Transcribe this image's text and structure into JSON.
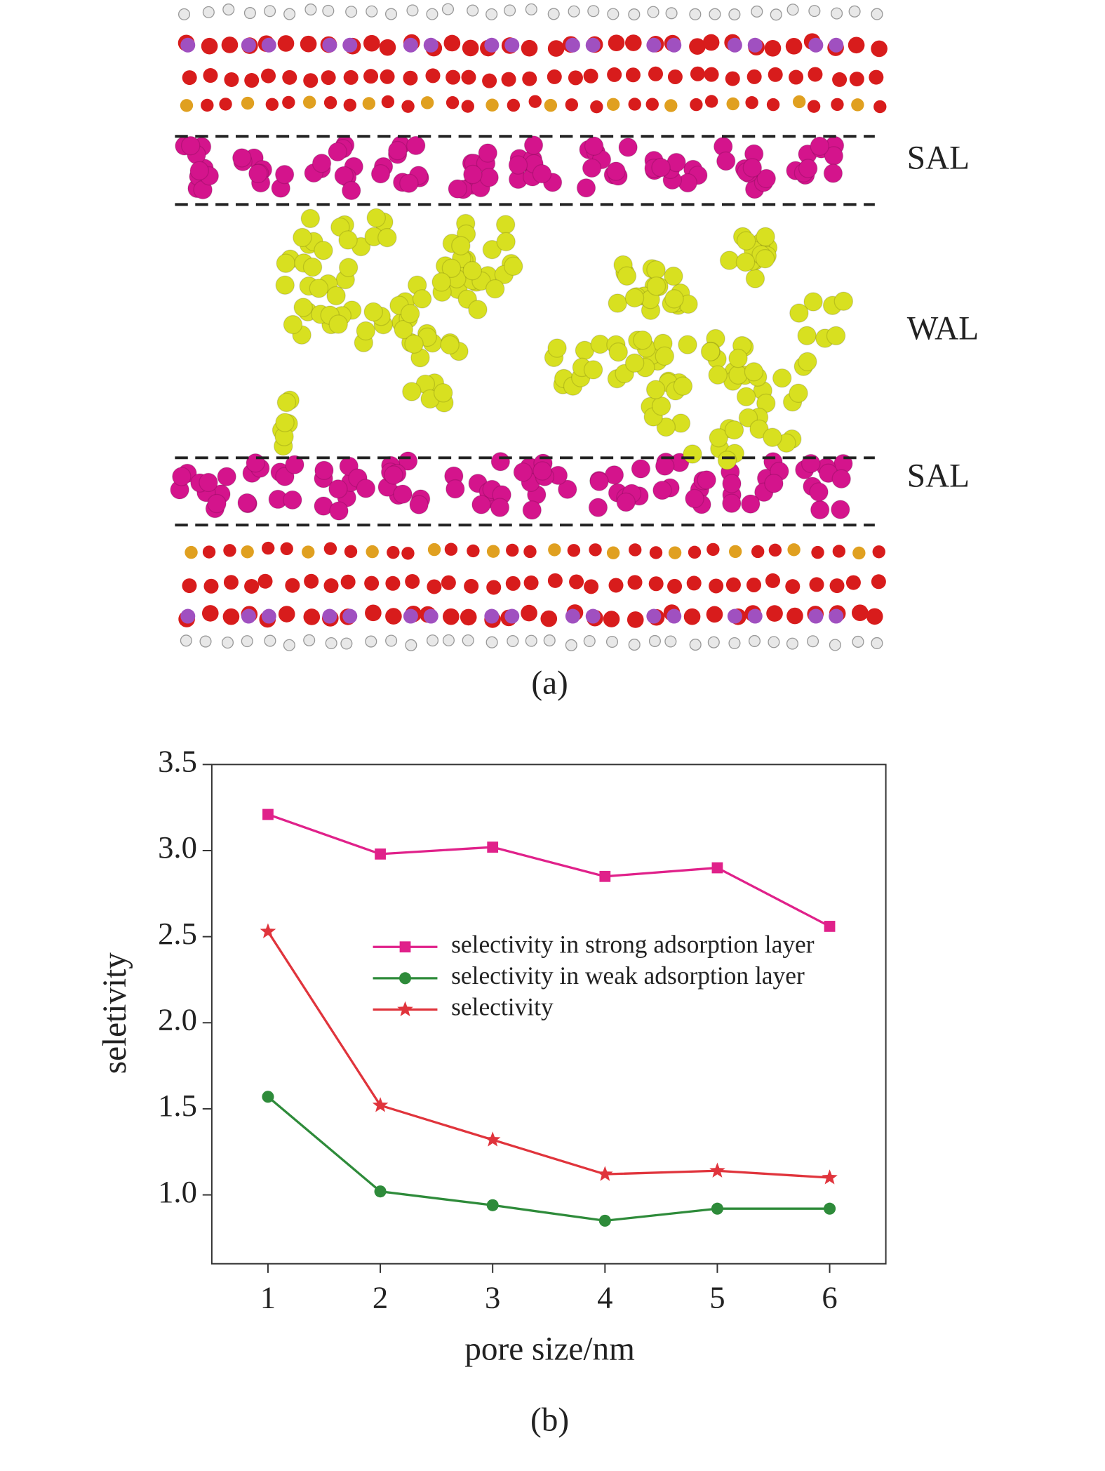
{
  "panel_a": {
    "labels": [
      "SAL",
      "WAL",
      "SAL"
    ],
    "caption": "(a)"
  },
  "panel_b_caption": "(b)",
  "chart_data": {
    "type": "line",
    "xlabel": "pore size/nm",
    "ylabel": "seletivity",
    "x": [
      1,
      2,
      3,
      4,
      5,
      6
    ],
    "xlim": [
      0.5,
      6.5
    ],
    "xticks": [
      1,
      2,
      3,
      4,
      5,
      6
    ],
    "ylim": [
      0.6,
      3.5
    ],
    "yticks": [
      {
        "value": 1,
        "label": "1.0"
      },
      1.5,
      {
        "value": 2,
        "label": "2.0"
      },
      2.5,
      {
        "value": 3,
        "label": "3.0"
      },
      3.5
    ],
    "series": [
      {
        "name": "selectivity in strong adsorption layer",
        "color": "#e0218a",
        "marker": "square",
        "values": [
          3.21,
          2.98,
          3.02,
          2.85,
          2.9,
          2.56
        ]
      },
      {
        "name": "selectivity in weak adsorption layer",
        "color": "#2e8b3a",
        "marker": "circle",
        "values": [
          1.57,
          1.02,
          0.94,
          0.85,
          0.92,
          0.92
        ]
      },
      {
        "name": "selectivity",
        "color": "#e0343c",
        "marker": "star",
        "values": [
          2.53,
          1.52,
          1.32,
          1.12,
          1.14,
          1.1
        ]
      }
    ]
  }
}
